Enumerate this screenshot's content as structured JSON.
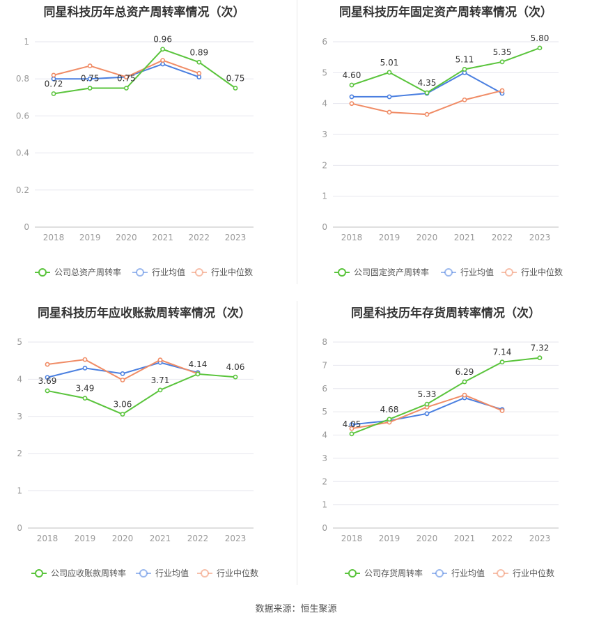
{
  "source": "数据来源：恒生聚源",
  "colors": {
    "company": "#5ac43c",
    "industry_avg": "#4a7fe0",
    "industry_median": "#f08c66",
    "grid": "#e6e6ee",
    "axis_text": "#999999",
    "label_text": "#333333"
  },
  "chart_data": [
    {
      "type": "line",
      "title": "同星科技历年总资产周转率情况（次）",
      "categories": [
        "2018",
        "2019",
        "2020",
        "2021",
        "2022",
        "2023"
      ],
      "ylim": [
        0,
        1
      ],
      "yticks": [
        0,
        0.2,
        0.4,
        0.6,
        0.8,
        1
      ],
      "ytick_labels": [
        "0",
        "0.2",
        "0.4",
        "0.6",
        "0.8",
        "1"
      ],
      "series": [
        {
          "name": "公司总资产周转率",
          "key": "company",
          "values": [
            0.72,
            0.75,
            0.75,
            0.96,
            0.89,
            0.75
          ],
          "labels": [
            "0.72",
            "0.75",
            "0.75",
            "0.96",
            "0.89",
            "0.75"
          ]
        },
        {
          "name": "行业均值",
          "key": "industry_avg",
          "values": [
            0.8,
            0.8,
            0.81,
            0.88,
            0.81,
            null
          ]
        },
        {
          "name": "行业中位数",
          "key": "industry_median",
          "values": [
            0.82,
            0.87,
            0.81,
            0.9,
            0.83,
            null
          ]
        }
      ]
    },
    {
      "type": "line",
      "title": "同星科技历年固定资产周转率情况（次）",
      "categories": [
        "2018",
        "2019",
        "2020",
        "2021",
        "2022",
        "2023"
      ],
      "ylim": [
        0,
        6
      ],
      "yticks": [
        0,
        1,
        2,
        3,
        4,
        5,
        6
      ],
      "ytick_labels": [
        "0",
        "1",
        "2",
        "3",
        "4",
        "5",
        "6"
      ],
      "series": [
        {
          "name": "公司固定资产周转率",
          "key": "company",
          "values": [
            4.6,
            5.01,
            4.35,
            5.11,
            5.35,
            5.8
          ],
          "labels": [
            "4.60",
            "5.01",
            "4.35",
            "5.11",
            "5.35",
            "5.80"
          ]
        },
        {
          "name": "行业均值",
          "key": "industry_avg",
          "values": [
            4.22,
            4.22,
            4.33,
            5.0,
            4.33,
            null
          ]
        },
        {
          "name": "行业中位数",
          "key": "industry_median",
          "values": [
            4.0,
            3.72,
            3.65,
            4.12,
            4.42,
            null
          ]
        }
      ]
    },
    {
      "type": "line",
      "title": "同星科技历年应收账款周转率情况（次）",
      "categories": [
        "2018",
        "2019",
        "2020",
        "2021",
        "2022",
        "2023"
      ],
      "ylim": [
        0,
        5
      ],
      "yticks": [
        0,
        1,
        2,
        3,
        4,
        5
      ],
      "ytick_labels": [
        "0",
        "1",
        "2",
        "3",
        "4",
        "5"
      ],
      "series": [
        {
          "name": "公司应收账款周转率",
          "key": "company",
          "values": [
            3.69,
            3.49,
            3.06,
            3.71,
            4.14,
            4.06
          ],
          "labels": [
            "3.69",
            "3.49",
            "3.06",
            "3.71",
            "4.14",
            "4.06"
          ]
        },
        {
          "name": "行业均值",
          "key": "industry_avg",
          "values": [
            4.05,
            4.3,
            4.15,
            4.45,
            4.18,
            null
          ]
        },
        {
          "name": "行业中位数",
          "key": "industry_median",
          "values": [
            4.4,
            4.53,
            3.98,
            4.52,
            4.15,
            null
          ]
        }
      ]
    },
    {
      "type": "line",
      "title": "同星科技历年存货周转率情况（次）",
      "categories": [
        "2018",
        "2019",
        "2020",
        "2021",
        "2022",
        "2023"
      ],
      "ylim": [
        0,
        8
      ],
      "yticks": [
        0,
        1,
        2,
        3,
        4,
        5,
        6,
        7,
        8
      ],
      "ytick_labels": [
        "0",
        "1",
        "2",
        "3",
        "4",
        "5",
        "6",
        "7",
        "8"
      ],
      "series": [
        {
          "name": "公司存货周转率",
          "key": "company",
          "values": [
            4.05,
            4.68,
            5.33,
            6.29,
            7.14,
            7.32
          ],
          "labels": [
            "4.05",
            "4.68",
            "5.33",
            "6.29",
            "7.14",
            "7.32"
          ]
        },
        {
          "name": "行业均值",
          "key": "industry_avg",
          "values": [
            4.45,
            4.62,
            4.92,
            5.6,
            5.1,
            null
          ]
        },
        {
          "name": "行业中位数",
          "key": "industry_median",
          "values": [
            4.28,
            4.55,
            5.2,
            5.72,
            5.05,
            null
          ]
        }
      ]
    }
  ]
}
